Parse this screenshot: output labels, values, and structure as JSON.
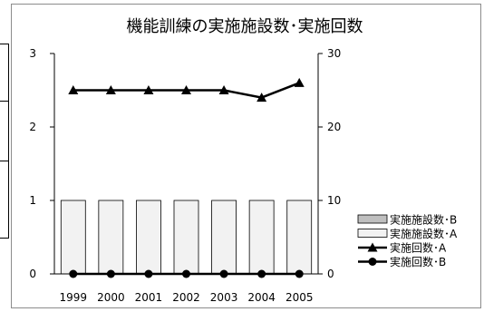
{
  "chart_data": {
    "type": "bar",
    "title": "機能訓練の実施施設数･実施回数",
    "categories": [
      "1999",
      "2000",
      "2001",
      "2002",
      "2003",
      "2004",
      "2005"
    ],
    "y_left": {
      "range": [
        0,
        3
      ],
      "ticks": [
        "0",
        "1",
        "2",
        "3"
      ]
    },
    "y_right": {
      "range": [
        0,
        30
      ],
      "ticks": [
        "0",
        "10",
        "20",
        "30"
      ]
    },
    "bar_series": [
      {
        "name": "実施施設数･A",
        "axis": "left",
        "color": "#f2f2f2",
        "values": [
          1,
          1,
          1,
          1,
          1,
          1,
          1
        ]
      },
      {
        "name": "実施施設数･B",
        "axis": "left",
        "color": "#bfbfbf",
        "values": [
          0,
          0,
          0,
          0,
          0,
          0,
          0
        ]
      }
    ],
    "line_series": [
      {
        "name": "実施回数･A",
        "axis": "right",
        "marker": "triangle",
        "color": "#000000",
        "values": [
          25,
          25,
          25,
          25,
          25,
          24,
          26
        ]
      },
      {
        "name": "実施回数･B",
        "axis": "right",
        "marker": "circle",
        "color": "#000000",
        "values": [
          0,
          0,
          0,
          0,
          0,
          0,
          0
        ]
      }
    ],
    "legend": {
      "placement": "right",
      "entries": [
        {
          "label": "実施施設数･B",
          "type": "bar",
          "color": "#bfbfbf"
        },
        {
          "label": "実施施設数･A",
          "type": "bar",
          "color": "#f2f2f2"
        },
        {
          "label": "実施回数･A",
          "type": "line-triangle"
        },
        {
          "label": "実施回数･B",
          "type": "line-circle"
        }
      ]
    },
    "grid": false
  }
}
